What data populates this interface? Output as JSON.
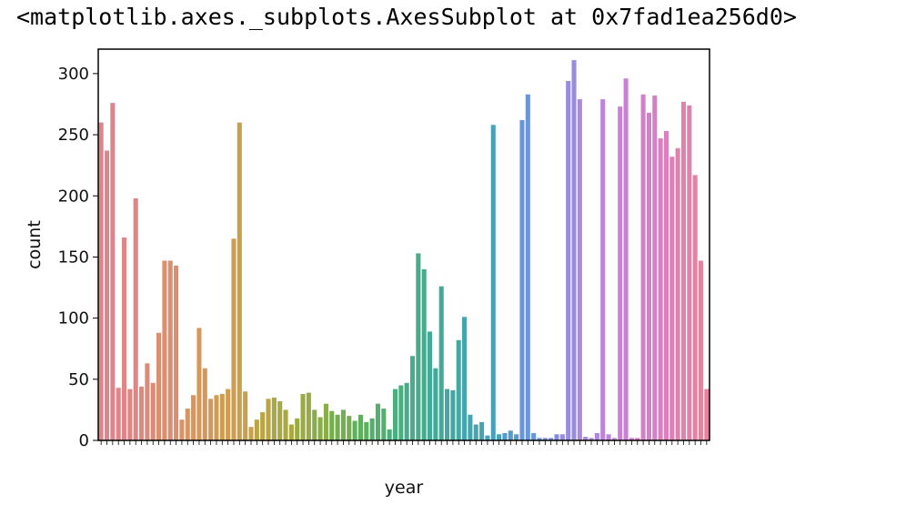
{
  "output_repr": "<matplotlib.axes._subplots.AxesSubplot at 0x7fad1ea256d0>",
  "chart_data": {
    "type": "bar",
    "xlabel": "year",
    "ylabel": "count",
    "ylim": [
      0,
      320
    ],
    "yticks": [
      0,
      50,
      100,
      150,
      200,
      250,
      300
    ],
    "grid": false,
    "legend": "none",
    "values": [
      260,
      237,
      276,
      43,
      166,
      42,
      198,
      44,
      63,
      47,
      88,
      147,
      147,
      143,
      17,
      26,
      37,
      92,
      59,
      34,
      37,
      38,
      42,
      165,
      260,
      40,
      11,
      17,
      23,
      34,
      35,
      32,
      25,
      13,
      18,
      38,
      39,
      25,
      19,
      30,
      24,
      21,
      25,
      20,
      16,
      21,
      15,
      18,
      30,
      26,
      9,
      42,
      45,
      47,
      69,
      153,
      140,
      89,
      59,
      126,
      42,
      41,
      82,
      101,
      21,
      13,
      15,
      4,
      258,
      5,
      6,
      8,
      5,
      262,
      283,
      6,
      2,
      2,
      2,
      5,
      5,
      294,
      311,
      279,
      3,
      2,
      6,
      279,
      5,
      2,
      273,
      296,
      2,
      2,
      283,
      268,
      282,
      247,
      253,
      232,
      239,
      277,
      274,
      217,
      147,
      42
    ],
    "colors": [
      "#e0848c",
      "#df8585",
      "#dd8a7a",
      "#da8f6f",
      "#d79464",
      "#d4995a",
      "#cf9d52",
      "#c9a04a",
      "#b9a545",
      "#aaa843",
      "#9aab43",
      "#89ad47",
      "#74af4f",
      "#5fb05c",
      "#52af6d",
      "#4bae7d",
      "#47ac8b",
      "#44aa98",
      "#43a8a3",
      "#44a5af",
      "#48a1bc",
      "#539ccb",
      "#6896d8",
      "#8190de",
      "#988ce0",
      "#ac88df",
      "#bd84dd",
      "#cb80d6",
      "#d57ec9",
      "#dc7fbb",
      "#e181ad",
      "#e4839e"
    ]
  }
}
